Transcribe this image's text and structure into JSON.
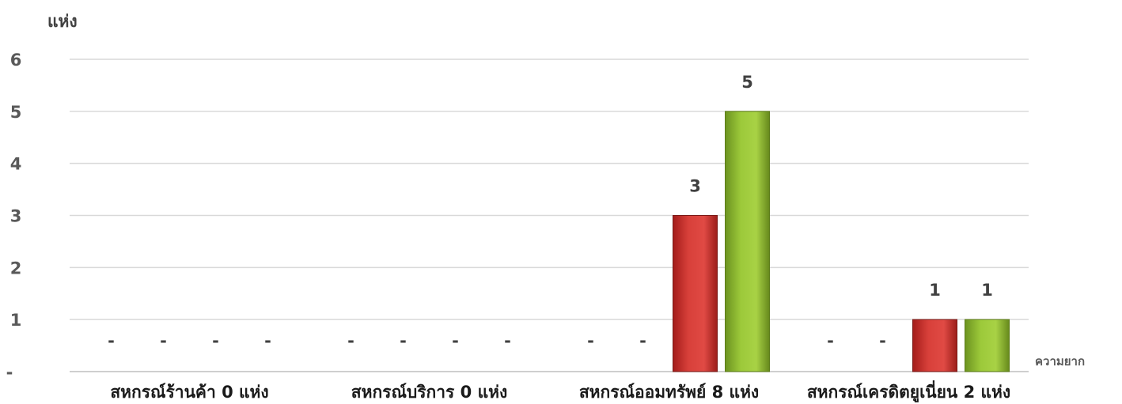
{
  "chart_data": {
    "type": "bar",
    "ylabel": "แห่ง",
    "xlabel": "ความยาก",
    "ylim": [
      0,
      6
    ],
    "yticks": [
      "-",
      "1",
      "2",
      "3",
      "4",
      "5",
      "6"
    ],
    "grid": true,
    "legend": "none",
    "categories": [
      "สหกรณ์ร้านค้า 0 แห่ง",
      "สหกรณ์บริการ 0 แห่ง",
      "สหกรณ์ออมทรัพย์ 8 แห่ง",
      "สหกรณ์เครดิตยูเนี่ยน 2 แห่ง"
    ],
    "series": [
      {
        "values": [
          0,
          0,
          0,
          0
        ],
        "color": "#ffffff"
      },
      {
        "values": [
          0,
          0,
          0,
          0
        ],
        "color": "#ffffff"
      },
      {
        "values": [
          0,
          0,
          3,
          1
        ],
        "color": "#c9302c"
      },
      {
        "values": [
          0,
          0,
          5,
          1
        ],
        "color": "#8cb82b"
      }
    ],
    "zero_label": "-"
  }
}
